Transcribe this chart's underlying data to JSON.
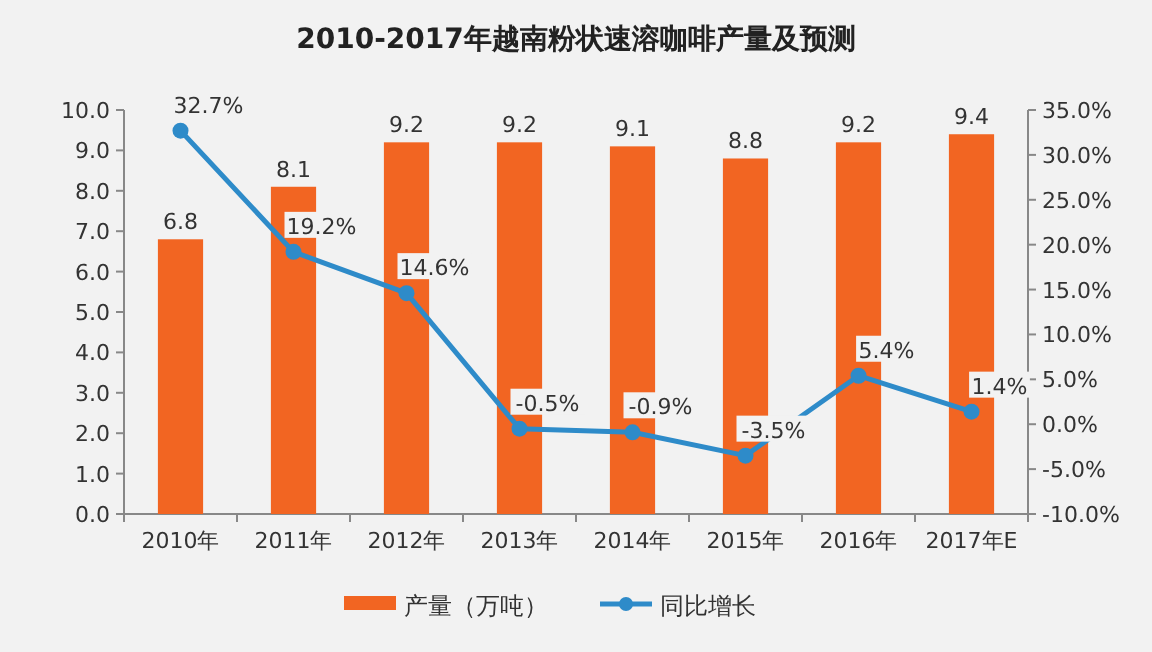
{
  "chart_data": {
    "type": "bar",
    "title": "2010-2017年越南粉状速溶咖啡产量及预测",
    "categories": [
      "2010年",
      "2011年",
      "2012年",
      "2013年",
      "2014年",
      "2015年",
      "2016年",
      "2017年E"
    ],
    "series": [
      {
        "name": "产量（万吨）",
        "color": "#f26522",
        "values": [
          6.8,
          8.1,
          9.2,
          9.2,
          9.1,
          8.8,
          9.2,
          9.4
        ],
        "value_labels": [
          "6.8",
          "8.1",
          "9.2",
          "9.2",
          "9.1",
          "8.8",
          "9.2",
          "9.4"
        ]
      },
      {
        "name": "同比增长",
        "type": "line",
        "axis": "y2",
        "color": "#2e8bc9",
        "marker": "circle",
        "values": [
          32.7,
          19.2,
          14.6,
          -0.5,
          -0.9,
          -3.5,
          5.4,
          1.4
        ],
        "value_labels": [
          "32.7%",
          "19.2%",
          "14.6%",
          "-0.5%",
          "-0.9%",
          "-3.5%",
          "5.4%",
          "1.4%"
        ]
      }
    ],
    "ylim": [
      0,
      10
    ],
    "yticks": [
      {
        "value": 0,
        "label": "0.0"
      },
      {
        "value": 1,
        "label": "1.0"
      },
      {
        "value": 2,
        "label": "2.0"
      },
      {
        "value": 3,
        "label": "3.0"
      },
      {
        "value": 4,
        "label": "4.0"
      },
      {
        "value": 5,
        "label": "5.0"
      },
      {
        "value": 6,
        "label": "6.0"
      },
      {
        "value": 7,
        "label": "7.0"
      },
      {
        "value": 8,
        "label": "8.0"
      },
      {
        "value": 9,
        "label": "9.0"
      },
      {
        "value": 10,
        "label": "10.0"
      }
    ],
    "y2lim": [
      -10,
      35
    ],
    "y2ticks": [
      {
        "value": -10,
        "label": "-10.0%"
      },
      {
        "value": -5,
        "label": "-5.0%"
      },
      {
        "value": 0,
        "label": "0.0%"
      },
      {
        "value": 5,
        "label": "5.0%"
      },
      {
        "value": 10,
        "label": "10.0%"
      },
      {
        "value": 15,
        "label": "15.0%"
      },
      {
        "value": 20,
        "label": "20.0%"
      },
      {
        "value": 25,
        "label": "25.0%"
      },
      {
        "value": 30,
        "label": "30.0%"
      },
      {
        "value": 35,
        "label": "35.0%"
      }
    ],
    "grid": false,
    "legend": "bottom"
  }
}
